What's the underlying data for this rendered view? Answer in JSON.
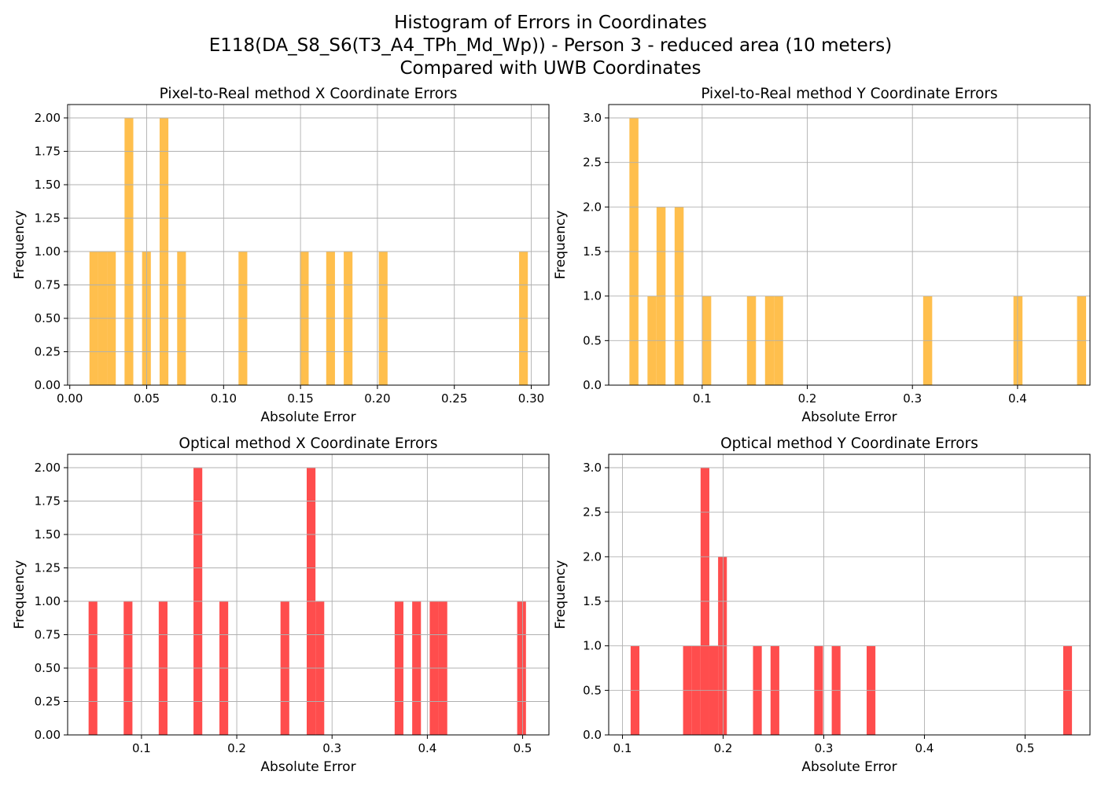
{
  "figure": {
    "title_lines": [
      "Histogram of Errors in Coordinates",
      "E118(DA_S8_S6(T3_A4_TPh_Md_Wp)) - Person 3 - reduced area (10 meters)",
      "Compared with UWB Coordinates"
    ]
  },
  "chart_data": [
    {
      "type": "bar",
      "title": "Pixel-to-Real method X Coordinate Errors",
      "xlabel": "Absolute Error",
      "ylabel": "Frequency",
      "color": "#FFBF4D",
      "grid": true,
      "xlim": [
        -0.0014,
        0.3115
      ],
      "ylim": [
        0,
        2.1
      ],
      "xticks": [
        0.0,
        0.05,
        0.1,
        0.15,
        0.2,
        0.25,
        0.3
      ],
      "xtick_labels": [
        "0.00",
        "0.05",
        "0.10",
        "0.15",
        "0.20",
        "0.25",
        "0.30"
      ],
      "yticks": [
        0,
        0.25,
        0.5,
        0.75,
        1.0,
        1.25,
        1.5,
        1.75,
        2.0
      ],
      "ytick_labels": [
        "0.00",
        "0.25",
        "0.50",
        "0.75",
        "1.00",
        "1.25",
        "1.50",
        "1.75",
        "2.00"
      ],
      "bin_width": 0.0057,
      "bins": [
        {
          "x": 0.0128,
          "count": 1
        },
        {
          "x": 0.0185,
          "count": 1
        },
        {
          "x": 0.0242,
          "count": 1
        },
        {
          "x": 0.0356,
          "count": 2
        },
        {
          "x": 0.047,
          "count": 1
        },
        {
          "x": 0.0584,
          "count": 2
        },
        {
          "x": 0.0698,
          "count": 1
        },
        {
          "x": 0.1097,
          "count": 1
        },
        {
          "x": 0.1496,
          "count": 1
        },
        {
          "x": 0.1667,
          "count": 1
        },
        {
          "x": 0.1781,
          "count": 1
        },
        {
          "x": 0.2009,
          "count": 1
        },
        {
          "x": 0.2921,
          "count": 1
        }
      ]
    },
    {
      "type": "bar",
      "title": "Pixel-to-Real method Y Coordinate Errors",
      "xlabel": "Absolute Error",
      "ylabel": "Frequency",
      "color": "#FFBF4D",
      "grid": true,
      "xlim": [
        0.0111,
        0.4689
      ],
      "ylim": [
        0,
        3.15
      ],
      "xticks": [
        0.1,
        0.2,
        0.3,
        0.4
      ],
      "xtick_labels": [
        "0.1",
        "0.2",
        "0.3",
        "0.4"
      ],
      "yticks": [
        0,
        0.5,
        1.0,
        1.5,
        2.0,
        2.5,
        3.0
      ],
      "ytick_labels": [
        "0.0",
        "0.5",
        "1.0",
        "1.5",
        "2.0",
        "2.5",
        "3.0"
      ],
      "bin_width": 0.0086,
      "bins": [
        {
          "x": 0.0308,
          "count": 3
        },
        {
          "x": 0.048,
          "count": 1
        },
        {
          "x": 0.0566,
          "count": 2
        },
        {
          "x": 0.0738,
          "count": 2
        },
        {
          "x": 0.1,
          "count": 1
        },
        {
          "x": 0.1426,
          "count": 1
        },
        {
          "x": 0.1598,
          "count": 1
        },
        {
          "x": 0.1684,
          "count": 1
        },
        {
          "x": 0.3102,
          "count": 1
        },
        {
          "x": 0.3961,
          "count": 1
        },
        {
          "x": 0.4566,
          "count": 1
        }
      ]
    },
    {
      "type": "bar",
      "title": "Optical method X Coordinate Errors",
      "xlabel": "Absolute Error",
      "ylabel": "Frequency",
      "color": "#FF4D4D",
      "grid": true,
      "xlim": [
        0.0225,
        0.5276
      ],
      "ylim": [
        0,
        2.1
      ],
      "xticks": [
        0.1,
        0.2,
        0.3,
        0.4,
        0.5
      ],
      "xtick_labels": [
        "0.1",
        "0.2",
        "0.3",
        "0.4",
        "0.5"
      ],
      "yticks": [
        0,
        0.25,
        0.5,
        0.75,
        1.0,
        1.25,
        1.5,
        1.75,
        2.0
      ],
      "ytick_labels": [
        "0.00",
        "0.25",
        "0.50",
        "0.75",
        "1.00",
        "1.25",
        "1.50",
        "1.75",
        "2.00"
      ],
      "bin_width": 0.0092,
      "bins": [
        {
          "x": 0.0445,
          "count": 1
        },
        {
          "x": 0.0813,
          "count": 1
        },
        {
          "x": 0.1181,
          "count": 1
        },
        {
          "x": 0.1546,
          "count": 2
        },
        {
          "x": 0.1818,
          "count": 1
        },
        {
          "x": 0.2459,
          "count": 1
        },
        {
          "x": 0.2734,
          "count": 2
        },
        {
          "x": 0.2826,
          "count": 1
        },
        {
          "x": 0.3657,
          "count": 1
        },
        {
          "x": 0.3841,
          "count": 1
        },
        {
          "x": 0.4025,
          "count": 1
        },
        {
          "x": 0.4117,
          "count": 1
        },
        {
          "x": 0.4943,
          "count": 1
        }
      ]
    },
    {
      "type": "bar",
      "title": "Optical method Y Coordinate Errors",
      "xlabel": "Absolute Error",
      "ylabel": "Frequency",
      "color": "#FF4D4D",
      "grid": true,
      "xlim": [
        0.0863,
        0.5645
      ],
      "ylim": [
        0,
        3.15
      ],
      "xticks": [
        0.1,
        0.2,
        0.3,
        0.4,
        0.5
      ],
      "xtick_labels": [
        "0.1",
        "0.2",
        "0.3",
        "0.4",
        "0.5"
      ],
      "yticks": [
        0,
        0.5,
        1.0,
        1.5,
        2.0,
        2.5,
        3.0
      ],
      "ytick_labels": [
        "0.0",
        "0.5",
        "1.0",
        "1.5",
        "2.0",
        "2.5",
        "3.0"
      ],
      "bin_width": 0.0087,
      "bins": [
        {
          "x": 0.1081,
          "count": 1
        },
        {
          "x": 0.1602,
          "count": 1
        },
        {
          "x": 0.1689,
          "count": 1
        },
        {
          "x": 0.1776,
          "count": 3
        },
        {
          "x": 0.1863,
          "count": 1
        },
        {
          "x": 0.195,
          "count": 2
        },
        {
          "x": 0.2297,
          "count": 1
        },
        {
          "x": 0.2471,
          "count": 1
        },
        {
          "x": 0.2905,
          "count": 1
        },
        {
          "x": 0.3079,
          "count": 1
        },
        {
          "x": 0.3426,
          "count": 1
        },
        {
          "x": 0.5379,
          "count": 1
        }
      ]
    }
  ]
}
